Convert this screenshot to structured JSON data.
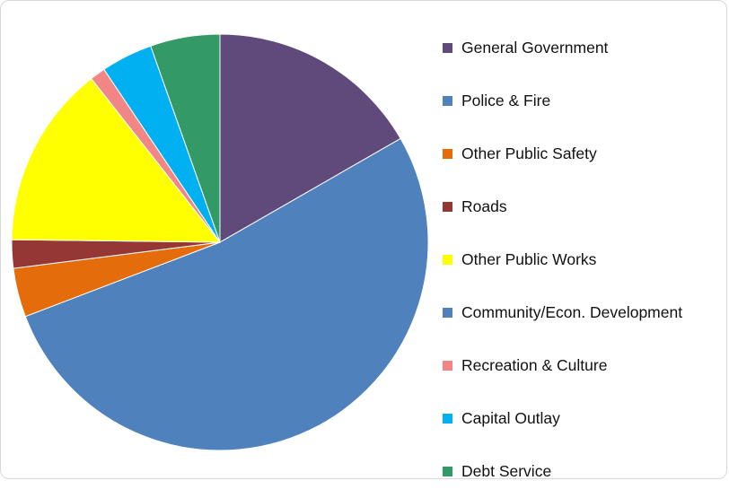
{
  "chart_data": {
    "type": "pie",
    "start_angle_deg": 0,
    "direction": "clockwise",
    "legend_placement": "right",
    "title": "",
    "slices": [
      {
        "label": "General Government",
        "value": 16.7,
        "color": "#604a7b"
      },
      {
        "label": "Police & Fire",
        "value": 52.5,
        "color": "#4f81bd"
      },
      {
        "label": "Other Public Safety",
        "value": 3.8,
        "color": "#e46c0a"
      },
      {
        "label": "Roads",
        "value": 2.2,
        "color": "#953735"
      },
      {
        "label": "Other Public Works",
        "value": 14.2,
        "color": "#ffff00"
      },
      {
        "label": "Community/Econ. Development",
        "value": 0.0,
        "color": "#4f81bd"
      },
      {
        "label": "Recreation & Culture",
        "value": 1.2,
        "color": "#f28585"
      },
      {
        "label": "Capital Outlay",
        "value": 4.0,
        "color": "#00b0f0"
      },
      {
        "label": "Debt Service",
        "value": 5.4,
        "color": "#339966"
      }
    ]
  }
}
